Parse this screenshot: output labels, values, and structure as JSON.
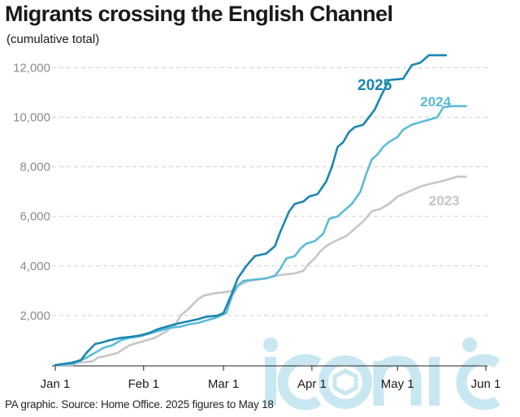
{
  "header": {
    "title": "Migrants crossing the English Channel",
    "subtitle": "(cumulative total)"
  },
  "footer": {
    "source": "PA graphic. Source: Home Office. 2025 figures to May 18"
  },
  "watermark": {
    "text": "iconic"
  },
  "colors": {
    "s2025": "#1a86b0",
    "s2024": "#5bbbd8",
    "s2023": "#c6c6c6",
    "grid": "#d0d0d0",
    "watermark": "#c8e7f1"
  },
  "chart_data": {
    "type": "line",
    "title": "Migrants crossing the English Channel",
    "subtitle": "(cumulative total)",
    "xlabel": "",
    "ylabel": "",
    "xlim": [
      0,
      152
    ],
    "ylim": [
      0,
      12500
    ],
    "grid": true,
    "legend": "inline labels",
    "y_ticks": [
      {
        "value": 2000,
        "label": "2,000"
      },
      {
        "value": 4000,
        "label": "4,000"
      },
      {
        "value": 6000,
        "label": "6,000"
      },
      {
        "value": 8000,
        "label": "8,000"
      },
      {
        "value": 10000,
        "label": "10,000"
      },
      {
        "value": 12000,
        "label": "12,000"
      }
    ],
    "x_ticks": [
      {
        "day": 0,
        "label": "Jan 1"
      },
      {
        "day": 31,
        "label": "Feb 1"
      },
      {
        "day": 59,
        "label": "Mar 1"
      },
      {
        "day": 90,
        "label": "Apr 1"
      },
      {
        "day": 120,
        "label": "May 1"
      },
      {
        "day": 151,
        "label": "Jun 1"
      }
    ],
    "series": [
      {
        "name": "2023",
        "colorKey": "s2023",
        "points": [
          [
            0,
            0
          ],
          [
            6,
            0
          ],
          [
            8,
            100
          ],
          [
            13,
            150
          ],
          [
            15,
            300
          ],
          [
            19,
            400
          ],
          [
            22,
            500
          ],
          [
            24,
            650
          ],
          [
            26,
            800
          ],
          [
            29,
            900
          ],
          [
            32,
            1000
          ],
          [
            35,
            1100
          ],
          [
            38,
            1300
          ],
          [
            42,
            1600
          ],
          [
            44,
            2000
          ],
          [
            47,
            2300
          ],
          [
            50,
            2650
          ],
          [
            52,
            2800
          ],
          [
            56,
            2900
          ],
          [
            60,
            2950
          ],
          [
            62,
            3000
          ],
          [
            64,
            3200
          ],
          [
            66,
            3300
          ],
          [
            68,
            3400
          ],
          [
            71,
            3450
          ],
          [
            74,
            3500
          ],
          [
            77,
            3600
          ],
          [
            80,
            3650
          ],
          [
            84,
            3700
          ],
          [
            87,
            3800
          ],
          [
            89,
            4100
          ],
          [
            91,
            4300
          ],
          [
            93,
            4600
          ],
          [
            95,
            4800
          ],
          [
            98,
            5000
          ],
          [
            102,
            5200
          ],
          [
            105,
            5500
          ],
          [
            108,
            5800
          ],
          [
            111,
            6200
          ],
          [
            114,
            6300
          ],
          [
            117,
            6500
          ],
          [
            120,
            6800
          ],
          [
            124,
            7000
          ],
          [
            128,
            7200
          ],
          [
            131,
            7300
          ],
          [
            135,
            7400
          ],
          [
            138,
            7500
          ],
          [
            141,
            7600
          ],
          [
            144,
            7600
          ]
        ]
      },
      {
        "name": "2024",
        "colorKey": "s2024",
        "points": [
          [
            0,
            0
          ],
          [
            6,
            50
          ],
          [
            9,
            200
          ],
          [
            11,
            300
          ],
          [
            14,
            500
          ],
          [
            17,
            700
          ],
          [
            20,
            800
          ],
          [
            23,
            1000
          ],
          [
            26,
            1100
          ],
          [
            29,
            1150
          ],
          [
            31,
            1200
          ],
          [
            34,
            1300
          ],
          [
            37,
            1400
          ],
          [
            40,
            1500
          ],
          [
            44,
            1550
          ],
          [
            47,
            1650
          ],
          [
            50,
            1700
          ],
          [
            53,
            1800
          ],
          [
            56,
            1900
          ],
          [
            58,
            2000
          ],
          [
            60,
            2100
          ],
          [
            62,
            2800
          ],
          [
            64,
            3200
          ],
          [
            66,
            3400
          ],
          [
            70,
            3450
          ],
          [
            74,
            3500
          ],
          [
            77,
            3600
          ],
          [
            79,
            3900
          ],
          [
            81,
            4300
          ],
          [
            84,
            4400
          ],
          [
            86,
            4700
          ],
          [
            88,
            4900
          ],
          [
            91,
            5000
          ],
          [
            94,
            5300
          ],
          [
            96,
            5900
          ],
          [
            99,
            6000
          ],
          [
            102,
            6300
          ],
          [
            104,
            6500
          ],
          [
            107,
            7000
          ],
          [
            109,
            7700
          ],
          [
            111,
            8300
          ],
          [
            113,
            8500
          ],
          [
            115,
            8800
          ],
          [
            117,
            9000
          ],
          [
            120,
            9200
          ],
          [
            122,
            9500
          ],
          [
            125,
            9700
          ],
          [
            128,
            9800
          ],
          [
            131,
            9900
          ],
          [
            134,
            10000
          ],
          [
            136,
            10400
          ],
          [
            139,
            10450
          ],
          [
            144,
            10450
          ]
        ]
      },
      {
        "name": "2025",
        "colorKey": "s2025",
        "points": [
          [
            0,
            0
          ],
          [
            3,
            50
          ],
          [
            6,
            100
          ],
          [
            9,
            200
          ],
          [
            11,
            500
          ],
          [
            14,
            850
          ],
          [
            16,
            900
          ],
          [
            19,
            1000
          ],
          [
            23,
            1100
          ],
          [
            27,
            1150
          ],
          [
            30,
            1200
          ],
          [
            33,
            1300
          ],
          [
            36,
            1450
          ],
          [
            39,
            1550
          ],
          [
            42,
            1650
          ],
          [
            46,
            1750
          ],
          [
            50,
            1850
          ],
          [
            53,
            1950
          ],
          [
            57,
            2000
          ],
          [
            59,
            2100
          ],
          [
            62,
            2900
          ],
          [
            64,
            3500
          ],
          [
            67,
            4000
          ],
          [
            70,
            4400
          ],
          [
            74,
            4500
          ],
          [
            77,
            4800
          ],
          [
            79,
            5400
          ],
          [
            82,
            6200
          ],
          [
            84,
            6500
          ],
          [
            87,
            6600
          ],
          [
            89,
            6800
          ],
          [
            92,
            6900
          ],
          [
            95,
            7400
          ],
          [
            97,
            8000
          ],
          [
            99,
            8800
          ],
          [
            101,
            9000
          ],
          [
            103,
            9400
          ],
          [
            105,
            9600
          ],
          [
            108,
            9700
          ],
          [
            112,
            10300
          ],
          [
            114,
            10800
          ],
          [
            117,
            11500
          ],
          [
            122,
            11550
          ],
          [
            125,
            12100
          ],
          [
            128,
            12200
          ],
          [
            131,
            12500
          ],
          [
            137,
            12500
          ]
        ]
      }
    ],
    "labels": [
      {
        "series": "2025",
        "text": "2025",
        "at_day": 106,
        "at_value": 11100,
        "size": 19
      },
      {
        "series": "2024",
        "text": "2024",
        "at_day": 128,
        "at_value": 10450,
        "size": 17
      },
      {
        "series": "2023",
        "text": "2023",
        "at_day": 131,
        "at_value": 6450,
        "size": 17
      }
    ]
  }
}
